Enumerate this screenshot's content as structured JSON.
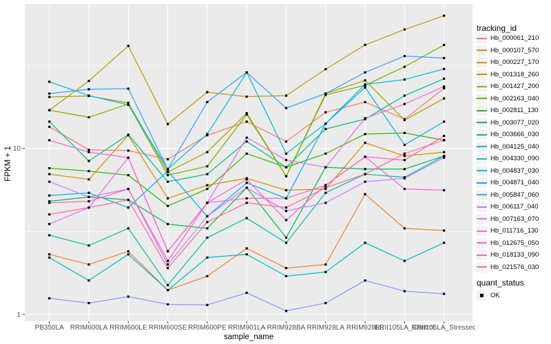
{
  "figure": {
    "background": "#FFFFFF",
    "panel_background": "#EBEBEB",
    "grid_color": "#FFFFFF",
    "tick_color": "#333333",
    "tick_label_color": "#4D4D4D",
    "point_color": "#000000"
  },
  "chart_data": {
    "type": "line",
    "title": "",
    "xlabel": "sample_name",
    "ylabel": "FPKM + 1",
    "y_scale": "log10",
    "y_ticks": [
      10,
      1
    ],
    "y_minor_gridlines": [
      31.62,
      3.162
    ],
    "ylim": [
      1,
      72
    ],
    "grid": true,
    "legend_position": "right",
    "point_shape": "filled-square",
    "categories": [
      "PB350LA",
      "RRIM600LA",
      "RRIM600LE",
      "RRIM600SE",
      "RRIM600PE",
      "RRIM901LA",
      "RRIM928BA",
      "RRIM928LA",
      "RRIM928LE",
      "RRII105LA_Control",
      "RRII105LA_Stressed"
    ],
    "legend": {
      "title": "tracking_id"
    },
    "quant_legend": {
      "title": "quant_status",
      "items": [
        "OK"
      ]
    },
    "series": [
      {
        "name": "Hb_000061_210",
        "color": "#F8766D",
        "values": [
          13.5,
          9.8,
          9.7,
          8.6,
          12.0,
          14.5,
          11.0,
          16.5,
          19.0,
          15.0,
          23.0
        ]
      },
      {
        "name": "Hb_000107_570",
        "color": "#EA8331",
        "values": [
          2.3,
          2.0,
          2.4,
          1.4,
          1.7,
          2.5,
          1.9,
          2.0,
          5.3,
          3.3,
          3.2
        ]
      },
      {
        "name": "Hb_000227_170",
        "color": "#D89000",
        "values": [
          7.0,
          6.5,
          12.0,
          5.0,
          6.0,
          6.6,
          5.6,
          5.7,
          10.8,
          9.0,
          9.5
        ]
      },
      {
        "name": "Hb_001318_260",
        "color": "#C09B00",
        "values": [
          17.0,
          25.5,
          41.5,
          14.0,
          21.8,
          20.5,
          20.8,
          30.0,
          42.0,
          52.0,
          63.0
        ]
      },
      {
        "name": "Hb_001427_200",
        "color": "#A3A500",
        "values": [
          20.4,
          20.7,
          18.8,
          7.2,
          9.5,
          16.3,
          6.8,
          21.4,
          25.7,
          14.8,
          20.0
        ]
      },
      {
        "name": "Hb_002163_040",
        "color": "#7CAE00",
        "values": [
          17.0,
          15.4,
          18.5,
          6.9,
          7.8,
          16.0,
          6.8,
          21.0,
          24.0,
          31.0,
          42.0
        ]
      },
      {
        "name": "Hb_002811_130",
        "color": "#39B600",
        "values": [
          7.6,
          7.3,
          6.9,
          4.5,
          5.7,
          9.3,
          7.7,
          9.3,
          12.2,
          12.4,
          11.2
        ]
      },
      {
        "name": "Hb_003077_020",
        "color": "#00BB4E",
        "values": [
          4.8,
          5.1,
          4.9,
          3.5,
          3.3,
          5.8,
          2.9,
          7.7,
          7.5,
          7.5,
          9.0
        ]
      },
      {
        "name": "Hb_003666_030",
        "color": "#00BF7D",
        "values": [
          14.5,
          8.4,
          12.1,
          6.3,
          7.0,
          11.0,
          7.7,
          13.1,
          15.0,
          20.8,
          26.3
        ]
      },
      {
        "name": "Hb_004125_040",
        "color": "#00C1A7",
        "values": [
          3.0,
          2.6,
          3.3,
          1.5,
          2.9,
          3.8,
          2.7,
          5.4,
          7.0,
          6.7,
          9.0
        ]
      },
      {
        "name": "Hb_004330_090",
        "color": "#00BFC4",
        "values": [
          2.2,
          1.6,
          2.3,
          1.4,
          2.2,
          2.3,
          1.7,
          1.8,
          2.7,
          2.1,
          2.7
        ]
      },
      {
        "name": "Hb_004837_030",
        "color": "#00BAE0",
        "values": [
          25.2,
          20.8,
          18.3,
          7.5,
          12.2,
          28.7,
          9.3,
          14.1,
          24.3,
          26.0,
          30.1
        ]
      },
      {
        "name": "Hb_004871_040",
        "color": "#00B0F6",
        "values": [
          5.2,
          5.4,
          4.4,
          7.3,
          3.9,
          6.2,
          5.0,
          14.1,
          23.3,
          10.5,
          14.5
        ]
      },
      {
        "name": "Hb_005847_060",
        "color": "#35A2FF",
        "values": [
          21.4,
          22.7,
          22.9,
          7.5,
          19.0,
          28.7,
          17.5,
          21.4,
          28.7,
          36.0,
          35.0
        ]
      },
      {
        "name": "Hb_006117_040",
        "color": "#9590FF",
        "values": [
          1.25,
          1.17,
          1.28,
          1.15,
          1.14,
          1.35,
          1.05,
          1.17,
          1.6,
          1.38,
          1.33
        ]
      },
      {
        "name": "Hb_007163_070",
        "color": "#C77CFF",
        "values": [
          6.3,
          5.1,
          5.7,
          2.0,
          3.9,
          5.8,
          4.2,
          4.7,
          6.3,
          6.6,
          8.8
        ]
      },
      {
        "name": "Hb_011716_130",
        "color": "#E76BF3",
        "values": [
          3.5,
          4.4,
          8.8,
          2.4,
          4.7,
          11.6,
          8.5,
          7.7,
          15.2,
          18.5,
          23.6
        ]
      },
      {
        "name": "Hb_012675_050",
        "color": "#FA62DB",
        "values": [
          11.2,
          9.5,
          8.8,
          2.4,
          4.7,
          6.5,
          3.7,
          6.0,
          8.9,
          5.7,
          5.6
        ]
      },
      {
        "name": "Hb_018133_090",
        "color": "#FF62BC",
        "values": [
          4.7,
          4.8,
          5.7,
          2.1,
          4.7,
          5.0,
          5.0,
          6.0,
          8.9,
          8.5,
          11.9
        ]
      },
      {
        "name": "Hb_021576_030",
        "color": "#FF6A98",
        "values": [
          4.0,
          4.4,
          4.9,
          1.9,
          3.6,
          4.7,
          4.4,
          5.8,
          7.0,
          9.3,
          11.2
        ]
      }
    ]
  }
}
